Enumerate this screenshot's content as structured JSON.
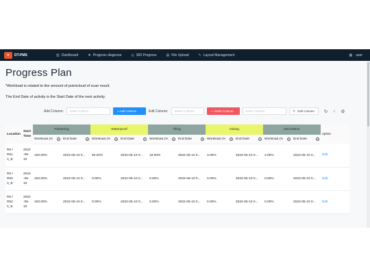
{
  "navbar": {
    "brand": "DT-PMS",
    "items": [
      {
        "icon": "chart-icon",
        "label": "Dashboard"
      },
      {
        "icon": "progress-icon",
        "label": "Progress diagnose"
      },
      {
        "icon": "360-icon",
        "label": "360 Progress"
      },
      {
        "icon": "file-upload-icon",
        "label": "File Upload"
      },
      {
        "icon": "layout-icon",
        "label": "Layout Management"
      }
    ],
    "user_label": "user"
  },
  "page": {
    "title": "Progress Plan",
    "note1": "*Workload is related to the amount of pointcloud of scan result.",
    "note2": "The End Date of activity is the Start Date of the next activity."
  },
  "toolbar": {
    "add_column_label": "Add Column:",
    "add_column_placeholder": "Enter Column",
    "add_button": "+ Add Column",
    "edit_column_label": "Edit Column:",
    "select_placeholder": "Select Column",
    "delete_button": "— Delet Column",
    "edit_input_placeholder": "Enter Column",
    "edit_button": "Edit Column"
  },
  "table": {
    "location_header": "Location",
    "start_header": "Start Time",
    "option_header": "option",
    "groups": [
      {
        "name": "Plastering",
        "color": "#8fa6a0"
      },
      {
        "name": "Waterproof",
        "color": "#e9f56a"
      },
      {
        "name": "Tiling",
        "color": "#8fa6a0"
      },
      {
        "name": "Gluing",
        "color": "#e9f56a"
      },
      {
        "name": "Decoration",
        "color": "#8fa6a0"
      }
    ],
    "sub_workload": "Workload (%",
    "sub_enddate": "End Date",
    "rows": [
      {
        "location": [
          "R5 /",
          "R51",
          "3_B"
        ],
        "start": [
          "2022",
          "-05-",
          "10"
        ],
        "cells": [
          {
            "workload": "100.00%",
            "end": "2022-05-10 0..."
          },
          {
            "workload": "80.00%",
            "end": "2022-05-10 0..."
          },
          {
            "workload": "16.00%",
            "end": "2022-05-10 0..."
          },
          {
            "workload": "3.00%",
            "end": "2022-05-10 0..."
          },
          {
            "workload": "3.00%",
            "end": "2022-05-10 0..."
          }
        ],
        "option": "Edit"
      },
      {
        "location": [
          "R5 /",
          "R50",
          "3_B"
        ],
        "start": [
          "2022",
          "-05-",
          "10"
        ],
        "cells": [
          {
            "workload": "100.00%",
            "end": "2022-05-10 0..."
          },
          {
            "workload": "0.00%",
            "end": "2022-05-10 0..."
          },
          {
            "workload": "0.00%",
            "end": "2022-05-10 0..."
          },
          {
            "workload": "0.00%",
            "end": "2022-05-10 0..."
          },
          {
            "workload": "0.00%",
            "end": "2022-05-10 0..."
          }
        ],
        "option": "Edit"
      },
      {
        "location": [
          "R5 /",
          "R52",
          "0_B"
        ],
        "start": [
          "2022",
          "-05-",
          "10"
        ],
        "cells": [
          {
            "workload": "100.00%",
            "end": "2022-05-10 0..."
          },
          {
            "workload": "0.00%",
            "end": "2022-05-10 0..."
          },
          {
            "workload": "0.00%",
            "end": "2022-05-10 0..."
          },
          {
            "workload": "0.00%",
            "end": "2022-05-10 0..."
          },
          {
            "workload": "0.00%",
            "end": "2022-05-10 0..."
          }
        ],
        "option": "Edit"
      }
    ]
  }
}
